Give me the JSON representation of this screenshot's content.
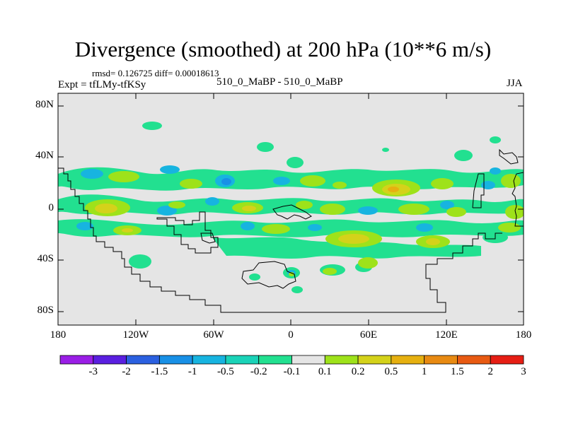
{
  "title": "Divergence (smoothed) at 200 hPa (10**6 m/s)",
  "stats": "rmsd= 0.126725 diff= 0.00018613",
  "experiment": "Expt = tfLMy-tfKSy",
  "comparison": "510_0_MaBP - 510_0_MaBP",
  "season": "JJA",
  "y_axis": {
    "ticks": [
      "80N",
      "40N",
      "0",
      "40S",
      "80S"
    ],
    "lat_values": [
      80,
      40,
      0,
      -40,
      -80
    ],
    "range": [
      -90,
      90
    ]
  },
  "x_axis": {
    "ticks": [
      "180",
      "120W",
      "60W",
      "0",
      "60E",
      "120E",
      "180"
    ],
    "lon_values": [
      -180,
      -120,
      -60,
      0,
      60,
      120,
      180
    ],
    "range": [
      -180,
      180
    ]
  },
  "colorbar": {
    "labels": [
      "-3",
      "-2",
      "-1.5",
      "-1",
      "-0.5",
      "-0.2",
      "-0.1",
      "0.1",
      "0.2",
      "0.5",
      "1",
      "1.5",
      "2",
      "3"
    ],
    "colors": [
      "#9a1ee6",
      "#5a1fe0",
      "#2b60e0",
      "#1890e6",
      "#17b4e0",
      "#1ad3b8",
      "#22e090",
      "#e5e5e5",
      "#9ee21a",
      "#d4d21a",
      "#e6b010",
      "#e88a12",
      "#e85a12",
      "#e61e14"
    ]
  },
  "colors": {
    "background": "#e5e5e5",
    "coastline": "#000000",
    "neg_light": "#22e090",
    "neg_mid": "#17b4e0",
    "pos_light": "#9ee21a",
    "pos_mid": "#d4d21a",
    "pos_high": "#e6b010"
  }
}
